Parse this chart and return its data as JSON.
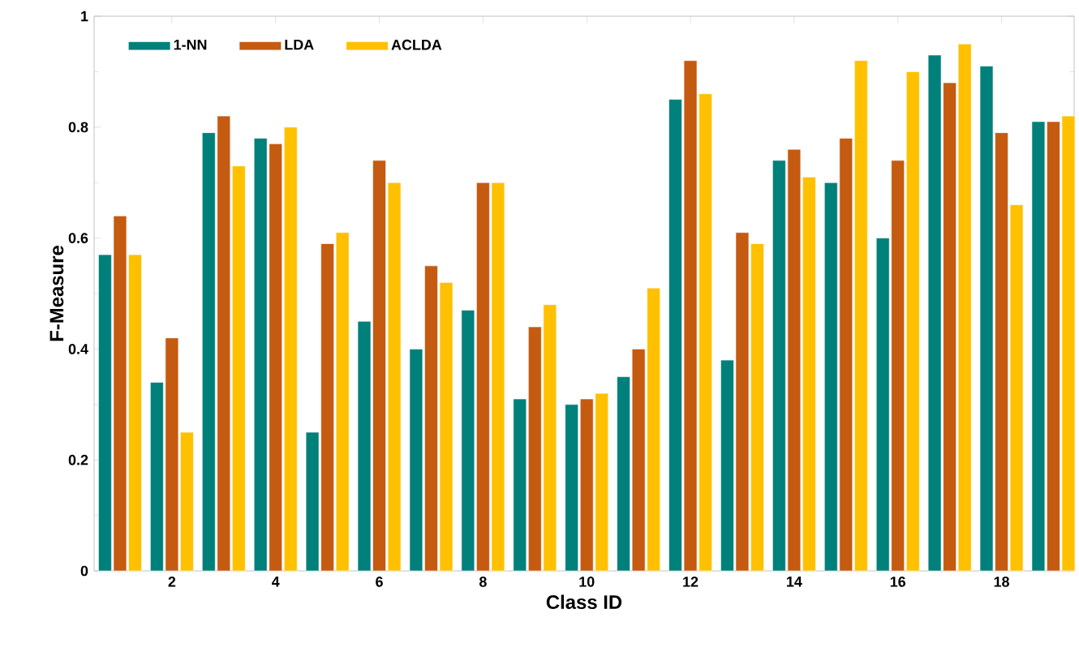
{
  "chart_data": {
    "type": "bar",
    "xlabel": "Class ID",
    "ylabel": "F-Measure",
    "x": [
      1,
      2,
      3,
      4,
      5,
      6,
      7,
      8,
      9,
      10,
      11,
      12,
      13,
      14,
      15,
      16,
      17,
      18,
      19
    ],
    "xlim": [
      0.5,
      19.4
    ],
    "xticks": [
      2,
      4,
      6,
      8,
      10,
      12,
      14,
      16,
      18
    ],
    "ylim": [
      0,
      1
    ],
    "yticks": [
      0,
      0.2,
      0.4,
      0.6,
      0.8,
      1
    ],
    "legend": "top left",
    "series": [
      {
        "name": "1-NN",
        "color": "#00807a",
        "values": [
          0.57,
          0.34,
          0.79,
          0.78,
          0.25,
          0.45,
          0.4,
          0.47,
          0.31,
          0.3,
          0.35,
          0.85,
          0.38,
          0.74,
          0.7,
          0.6,
          0.93,
          0.91,
          0.81
        ]
      },
      {
        "name": "LDA",
        "color": "#c55a11",
        "values": [
          0.64,
          0.42,
          0.82,
          0.77,
          0.59,
          0.74,
          0.55,
          0.7,
          0.44,
          0.31,
          0.4,
          0.92,
          0.61,
          0.76,
          0.78,
          0.74,
          0.88,
          0.79,
          0.81
        ]
      },
      {
        "name": "ACLDA",
        "color": "#ffc000",
        "values": [
          0.57,
          0.25,
          0.73,
          0.8,
          0.61,
          0.7,
          0.52,
          0.7,
          0.48,
          0.32,
          0.51,
          0.86,
          0.59,
          0.71,
          0.92,
          0.9,
          0.95,
          0.66,
          0.82
        ]
      }
    ]
  }
}
